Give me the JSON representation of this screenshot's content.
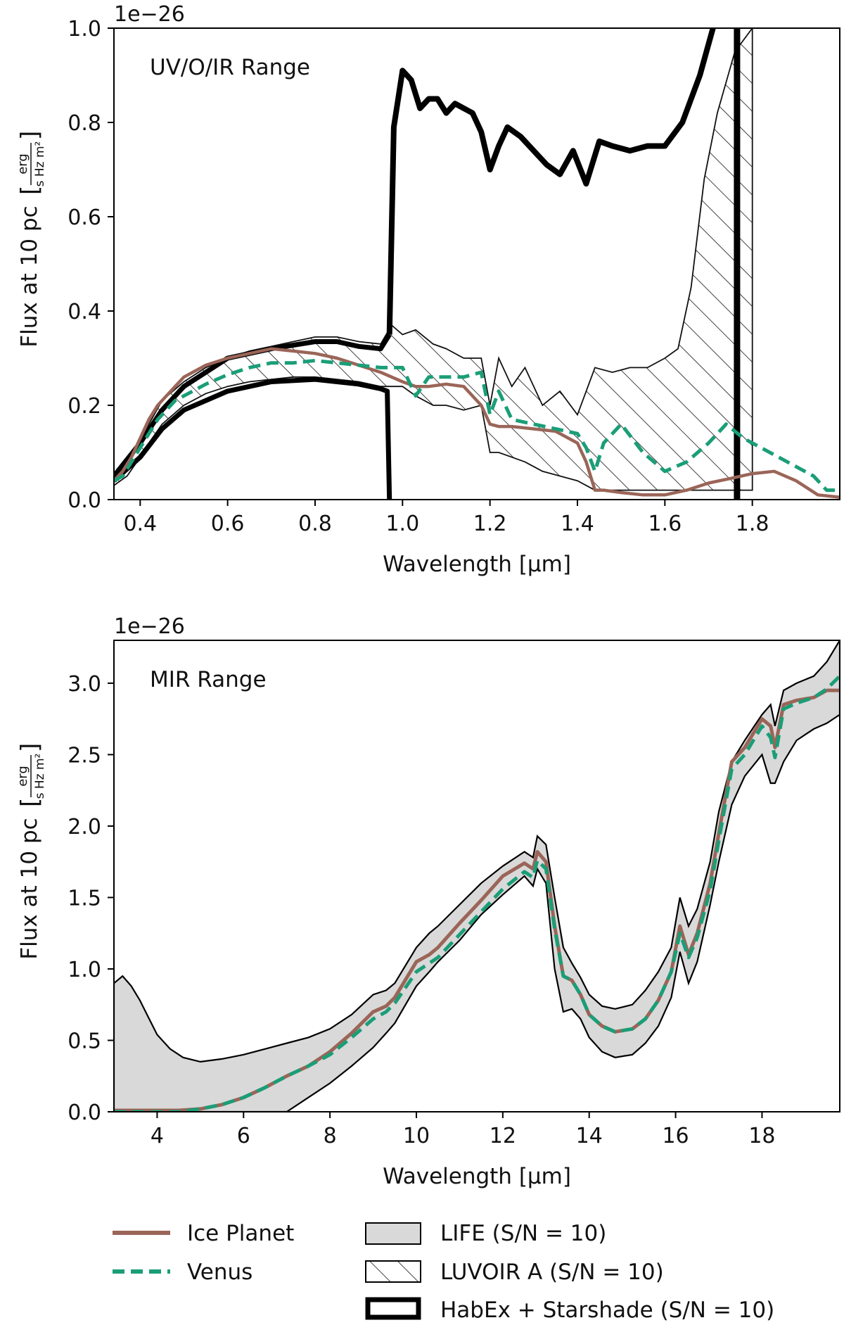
{
  "chart_data": [
    {
      "type": "line",
      "panel": "top",
      "annotation": "UV/O/IR Range",
      "scale_label": "1e−26",
      "xlabel": "Wavelength [μm]",
      "ylabel_main": "Flux at 10 pc",
      "ylabel_unit_num": "erg",
      "ylabel_unit_den": "s Hz m²",
      "xlim": [
        0.34,
        2.0
      ],
      "ylim": [
        0.0,
        1.0
      ],
      "xticks": [
        0.4,
        0.6,
        0.8,
        1.0,
        1.2,
        1.4,
        1.6,
        1.8
      ],
      "xtick_labels": [
        "0.4",
        "0.6",
        "0.8",
        "1.0",
        "1.2",
        "1.4",
        "1.6",
        "1.8"
      ],
      "yticks": [
        0.0,
        0.2,
        0.4,
        0.6,
        0.8,
        1.0
      ],
      "ytick_labels": [
        "0.0",
        "0.2",
        "0.4",
        "0.6",
        "0.8",
        "1.0"
      ],
      "luvoir_band": {
        "x": [
          0.34,
          0.37,
          0.4,
          0.42,
          0.45,
          0.5,
          0.55,
          0.6,
          0.65,
          0.7,
          0.75,
          0.8,
          0.85,
          0.9,
          0.95,
          0.975,
          1.0,
          1.03,
          1.07,
          1.1,
          1.14,
          1.18,
          1.2,
          1.22,
          1.25,
          1.28,
          1.32,
          1.36,
          1.4,
          1.44,
          1.48,
          1.52,
          1.56,
          1.6,
          1.63,
          1.66,
          1.69,
          1.72,
          1.76,
          1.8
        ],
        "upper": [
          0.05,
          0.07,
          0.12,
          0.16,
          0.21,
          0.25,
          0.28,
          0.3,
          0.315,
          0.325,
          0.335,
          0.345,
          0.345,
          0.335,
          0.33,
          0.37,
          0.35,
          0.36,
          0.33,
          0.32,
          0.3,
          0.3,
          0.2,
          0.3,
          0.24,
          0.28,
          0.2,
          0.23,
          0.18,
          0.28,
          0.27,
          0.28,
          0.28,
          0.3,
          0.32,
          0.45,
          0.68,
          0.82,
          0.95,
          1.0
        ],
        "lower": [
          0.03,
          0.05,
          0.09,
          0.12,
          0.16,
          0.2,
          0.225,
          0.24,
          0.25,
          0.255,
          0.26,
          0.26,
          0.255,
          0.25,
          0.24,
          0.24,
          0.24,
          0.22,
          0.2,
          0.2,
          0.19,
          0.2,
          0.1,
          0.1,
          0.09,
          0.08,
          0.06,
          0.05,
          0.04,
          0.02,
          0.02,
          0.02,
          0.02,
          0.02,
          0.02,
          0.02,
          0.02,
          0.02,
          0.02,
          0.02
        ]
      },
      "habex_upper": {
        "x": [
          0.34,
          0.4,
          0.45,
          0.5,
          0.6,
          0.7,
          0.8,
          0.85,
          0.9,
          0.95,
          0.97
        ],
        "y": [
          0.05,
          0.12,
          0.19,
          0.24,
          0.3,
          0.32,
          0.335,
          0.335,
          0.325,
          0.32,
          0.35
        ]
      },
      "habex_lower": {
        "x": [
          0.34,
          0.4,
          0.45,
          0.5,
          0.6,
          0.7,
          0.8,
          0.85,
          0.9,
          0.95,
          0.965,
          0.97
        ],
        "y": [
          0.04,
          0.09,
          0.15,
          0.19,
          0.23,
          0.25,
          0.255,
          0.25,
          0.245,
          0.235,
          0.23,
          0.0
        ]
      },
      "habex_spike": {
        "x": [
          0.97,
          0.98,
          1.0,
          1.02,
          1.04,
          1.06,
          1.08,
          1.1,
          1.12,
          1.14,
          1.16,
          1.18,
          1.2,
          1.22,
          1.24,
          1.27,
          1.3,
          1.33,
          1.36,
          1.39,
          1.42,
          1.45,
          1.48,
          1.52,
          1.56,
          1.6,
          1.64,
          1.68,
          1.71
        ],
        "y": [
          0.35,
          0.79,
          0.91,
          0.89,
          0.83,
          0.85,
          0.85,
          0.82,
          0.84,
          0.83,
          0.82,
          0.78,
          0.7,
          0.75,
          0.79,
          0.77,
          0.74,
          0.71,
          0.69,
          0.74,
          0.67,
          0.76,
          0.75,
          0.74,
          0.75,
          0.75,
          0.8,
          0.9,
          1.0
        ]
      },
      "habex_vertical": {
        "x": 1.765
      },
      "series": [
        {
          "name": "Ice Planet",
          "x": [
            0.34,
            0.36,
            0.38,
            0.4,
            0.42,
            0.44,
            0.46,
            0.48,
            0.5,
            0.55,
            0.6,
            0.65,
            0.7,
            0.75,
            0.8,
            0.85,
            0.9,
            0.95,
            1.0,
            1.03,
            1.06,
            1.1,
            1.14,
            1.18,
            1.2,
            1.22,
            1.25,
            1.3,
            1.35,
            1.4,
            1.42,
            1.44,
            1.46,
            1.5,
            1.55,
            1.6,
            1.65,
            1.7,
            1.75,
            1.8,
            1.85,
            1.9,
            1.95,
            2.0
          ],
          "y": [
            0.04,
            0.06,
            0.09,
            0.13,
            0.17,
            0.2,
            0.22,
            0.24,
            0.26,
            0.285,
            0.3,
            0.31,
            0.32,
            0.315,
            0.31,
            0.3,
            0.285,
            0.27,
            0.25,
            0.24,
            0.24,
            0.245,
            0.24,
            0.2,
            0.16,
            0.155,
            0.155,
            0.15,
            0.145,
            0.12,
            0.08,
            0.02,
            0.02,
            0.015,
            0.01,
            0.01,
            0.02,
            0.035,
            0.045,
            0.055,
            0.06,
            0.04,
            0.01,
            0.005
          ]
        },
        {
          "name": "Venus",
          "x": [
            0.34,
            0.36,
            0.38,
            0.4,
            0.42,
            0.44,
            0.46,
            0.48,
            0.5,
            0.55,
            0.6,
            0.65,
            0.7,
            0.75,
            0.8,
            0.85,
            0.9,
            0.95,
            1.0,
            1.03,
            1.06,
            1.1,
            1.14,
            1.18,
            1.2,
            1.22,
            1.25,
            1.3,
            1.35,
            1.4,
            1.42,
            1.44,
            1.46,
            1.5,
            1.55,
            1.6,
            1.65,
            1.7,
            1.74,
            1.78,
            1.82,
            1.86,
            1.9,
            1.94,
            1.97,
            2.0
          ],
          "y": [
            0.04,
            0.05,
            0.08,
            0.11,
            0.14,
            0.17,
            0.19,
            0.21,
            0.22,
            0.245,
            0.265,
            0.28,
            0.29,
            0.29,
            0.295,
            0.29,
            0.285,
            0.28,
            0.28,
            0.22,
            0.26,
            0.26,
            0.26,
            0.27,
            0.18,
            0.23,
            0.17,
            0.16,
            0.15,
            0.14,
            0.11,
            0.06,
            0.12,
            0.16,
            0.1,
            0.06,
            0.08,
            0.12,
            0.16,
            0.13,
            0.11,
            0.09,
            0.07,
            0.05,
            0.02,
            0.02
          ]
        }
      ]
    },
    {
      "type": "line",
      "panel": "bottom",
      "annotation": "MIR Range",
      "scale_label": "1e−26",
      "xlabel": "Wavelength [μm]",
      "ylabel_main": "Flux at 10 pc",
      "ylabel_unit_num": "erg",
      "ylabel_unit_den": "s Hz m²",
      "xlim": [
        3.0,
        19.8
      ],
      "ylim": [
        0.0,
        3.3
      ],
      "xticks": [
        4,
        6,
        8,
        10,
        12,
        14,
        16,
        18
      ],
      "xtick_labels": [
        "4",
        "6",
        "8",
        "10",
        "12",
        "14",
        "16",
        "18"
      ],
      "yticks": [
        0.0,
        0.5,
        1.0,
        1.5,
        2.0,
        2.5,
        3.0
      ],
      "ytick_labels": [
        "0.0",
        "0.5",
        "1.0",
        "1.5",
        "2.0",
        "2.5",
        "3.0"
      ],
      "life_band": {
        "x": [
          3.0,
          3.2,
          3.4,
          3.6,
          3.8,
          4.0,
          4.3,
          4.6,
          5.0,
          5.5,
          6.0,
          6.5,
          7.0,
          7.5,
          8.0,
          8.5,
          9.0,
          9.3,
          9.5,
          10.0,
          10.3,
          10.5,
          11.0,
          11.5,
          12.0,
          12.5,
          12.7,
          12.8,
          13.0,
          13.2,
          13.4,
          13.6,
          13.8,
          14.0,
          14.3,
          14.6,
          15.0,
          15.3,
          15.6,
          15.9,
          16.1,
          16.3,
          16.5,
          16.8,
          17.0,
          17.3,
          17.6,
          18.0,
          18.2,
          18.3,
          18.5,
          18.8,
          19.2,
          19.5,
          19.8
        ],
        "upper": [
          0.9,
          0.95,
          0.88,
          0.78,
          0.66,
          0.54,
          0.44,
          0.38,
          0.35,
          0.37,
          0.4,
          0.44,
          0.48,
          0.52,
          0.58,
          0.68,
          0.82,
          0.85,
          0.9,
          1.15,
          1.25,
          1.3,
          1.45,
          1.6,
          1.72,
          1.82,
          1.78,
          1.93,
          1.87,
          1.5,
          1.15,
          1.04,
          0.94,
          0.82,
          0.74,
          0.72,
          0.75,
          0.85,
          0.98,
          1.15,
          1.5,
          1.3,
          1.42,
          1.75,
          2.1,
          2.45,
          2.6,
          2.78,
          2.85,
          2.7,
          2.95,
          3.0,
          3.05,
          3.15,
          3.3
        ],
        "lower": [
          0.0,
          0.0,
          0.0,
          0.0,
          0.0,
          0.0,
          0.0,
          0.0,
          0.0,
          0.0,
          0.0,
          0.0,
          0.0,
          0.1,
          0.2,
          0.32,
          0.45,
          0.55,
          0.62,
          0.88,
          0.98,
          1.05,
          1.2,
          1.38,
          1.52,
          1.65,
          1.58,
          1.7,
          1.6,
          1.0,
          0.7,
          0.72,
          0.65,
          0.52,
          0.42,
          0.38,
          0.4,
          0.48,
          0.6,
          0.8,
          1.12,
          0.9,
          1.05,
          1.45,
          1.75,
          2.15,
          2.35,
          2.5,
          2.3,
          2.3,
          2.45,
          2.6,
          2.68,
          2.72,
          2.78
        ]
      },
      "series": [
        {
          "name": "Ice Planet",
          "x": [
            3.0,
            3.5,
            4.0,
            4.5,
            5.0,
            5.5,
            6.0,
            6.5,
            7.0,
            7.5,
            8.0,
            8.5,
            9.0,
            9.3,
            9.5,
            10.0,
            10.3,
            10.5,
            11.0,
            11.5,
            12.0,
            12.5,
            12.7,
            12.8,
            13.0,
            13.2,
            13.4,
            13.6,
            13.8,
            14.0,
            14.3,
            14.6,
            15.0,
            15.3,
            15.6,
            15.9,
            16.1,
            16.3,
            16.5,
            16.8,
            17.0,
            17.3,
            17.6,
            18.0,
            18.2,
            18.3,
            18.5,
            18.8,
            19.2,
            19.5,
            19.8
          ],
          "y": [
            0.01,
            0.01,
            0.01,
            0.01,
            0.02,
            0.05,
            0.1,
            0.17,
            0.25,
            0.32,
            0.42,
            0.55,
            0.7,
            0.74,
            0.8,
            1.05,
            1.1,
            1.15,
            1.32,
            1.48,
            1.65,
            1.74,
            1.7,
            1.82,
            1.75,
            1.3,
            0.95,
            0.92,
            0.82,
            0.68,
            0.6,
            0.56,
            0.58,
            0.65,
            0.78,
            0.98,
            1.3,
            1.1,
            1.25,
            1.6,
            1.95,
            2.45,
            2.55,
            2.75,
            2.7,
            2.55,
            2.85,
            2.88,
            2.9,
            2.95,
            2.95
          ]
        },
        {
          "name": "Venus",
          "x": [
            3.0,
            3.5,
            4.0,
            4.5,
            5.0,
            5.5,
            6.0,
            6.5,
            7.0,
            7.5,
            8.0,
            8.5,
            9.0,
            9.3,
            9.5,
            10.0,
            10.3,
            10.5,
            11.0,
            11.5,
            12.0,
            12.5,
            12.7,
            12.8,
            13.0,
            13.2,
            13.4,
            13.6,
            13.8,
            14.0,
            14.3,
            14.6,
            15.0,
            15.3,
            15.6,
            15.9,
            16.1,
            16.3,
            16.5,
            16.8,
            17.0,
            17.3,
            17.6,
            18.0,
            18.2,
            18.3,
            18.5,
            18.8,
            19.2,
            19.5,
            19.8
          ],
          "y": [
            0.0,
            0.0,
            0.0,
            0.0,
            0.02,
            0.05,
            0.1,
            0.17,
            0.25,
            0.32,
            0.4,
            0.52,
            0.65,
            0.7,
            0.76,
            0.98,
            1.04,
            1.08,
            1.24,
            1.4,
            1.56,
            1.68,
            1.64,
            1.76,
            1.7,
            1.28,
            0.95,
            0.92,
            0.82,
            0.68,
            0.6,
            0.56,
            0.58,
            0.65,
            0.78,
            0.98,
            1.25,
            1.08,
            1.22,
            1.55,
            1.9,
            2.4,
            2.5,
            2.7,
            2.62,
            2.48,
            2.82,
            2.86,
            2.9,
            2.96,
            3.05
          ]
        }
      ]
    }
  ],
  "legend": {
    "ice_planet": "Ice Planet",
    "venus": "Venus",
    "life": "LIFE (S/N = 10)",
    "luvoir": "LUVOIR A (S/N = 10)",
    "habex": "HabEx + Starshade (S/N = 10)"
  },
  "colors": {
    "ice_planet": "#9a6558",
    "venus": "#1a9e77",
    "life_fill": "#d9d9d9",
    "axis": "#000000"
  }
}
